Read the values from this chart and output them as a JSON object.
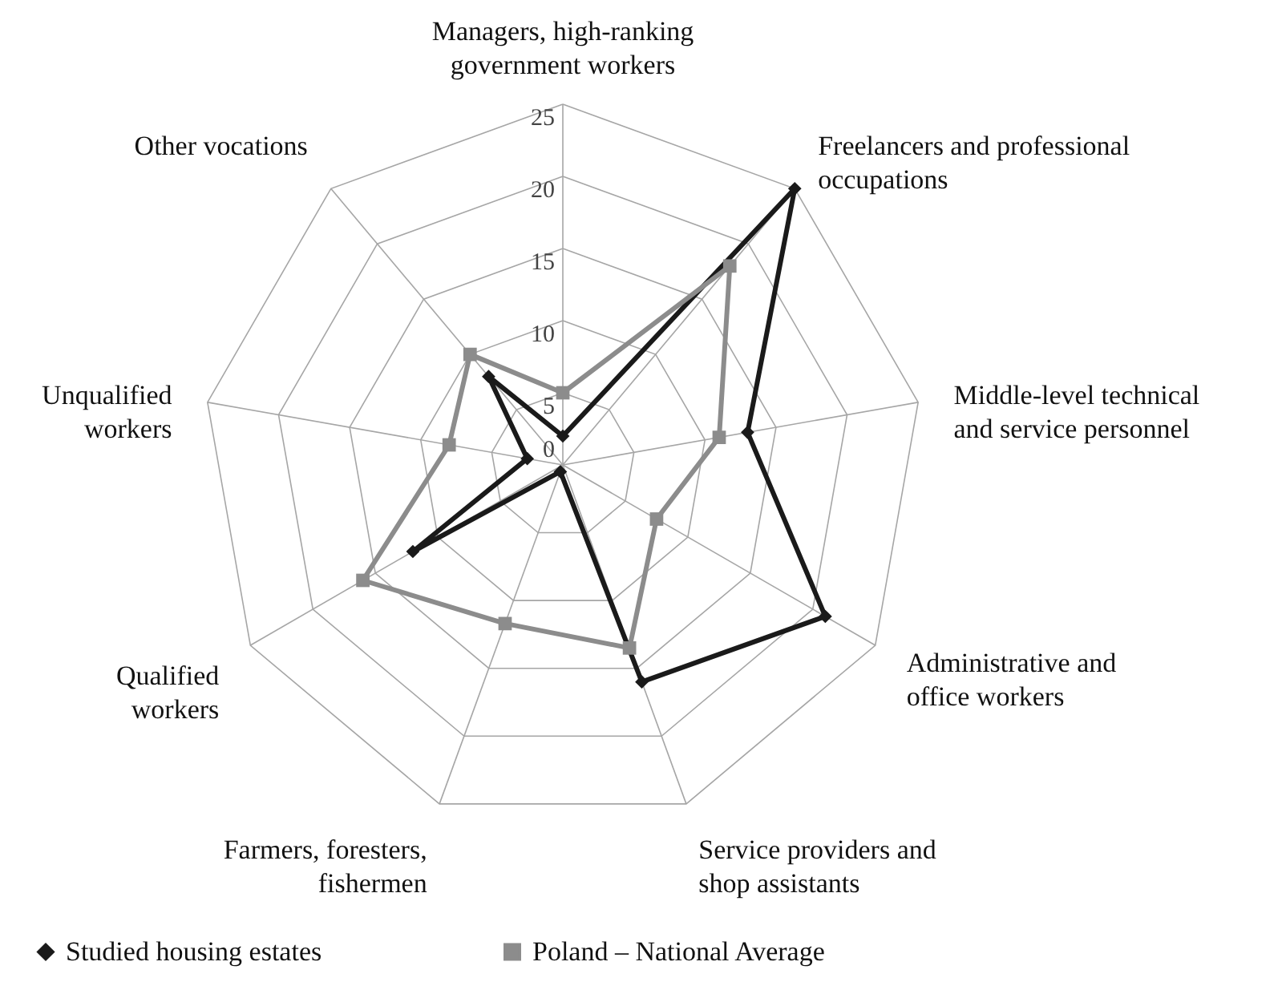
{
  "chart_data": {
    "type": "radar",
    "categories": [
      "Managers, high-ranking\ngovernment workers",
      "Freelancers and professional\noccupations",
      "Middle-level technical\nand service personnel",
      "Administrative and\noffice workers",
      "Service providers and\nshop assistants",
      "Farmers, foresters,\nfishermen",
      "Qualified\nworkers",
      "Unqualified\nworkers",
      "Other vocations"
    ],
    "series": [
      {
        "name": "Studied housing estates",
        "color": "#1a1a1a",
        "marker": "diamond",
        "values": [
          2,
          25,
          13,
          21,
          16,
          0.5,
          12,
          2.5,
          8
        ]
      },
      {
        "name": "Poland – National Average",
        "color": "#8c8c8c",
        "marker": "square",
        "values": [
          5,
          18,
          11,
          7.5,
          13.5,
          11.7,
          16,
          8,
          10
        ]
      }
    ],
    "ylim": [
      0,
      25
    ],
    "yticks": [
      0,
      5,
      10,
      15,
      20,
      25
    ],
    "grid": true,
    "legend": "bottom"
  }
}
